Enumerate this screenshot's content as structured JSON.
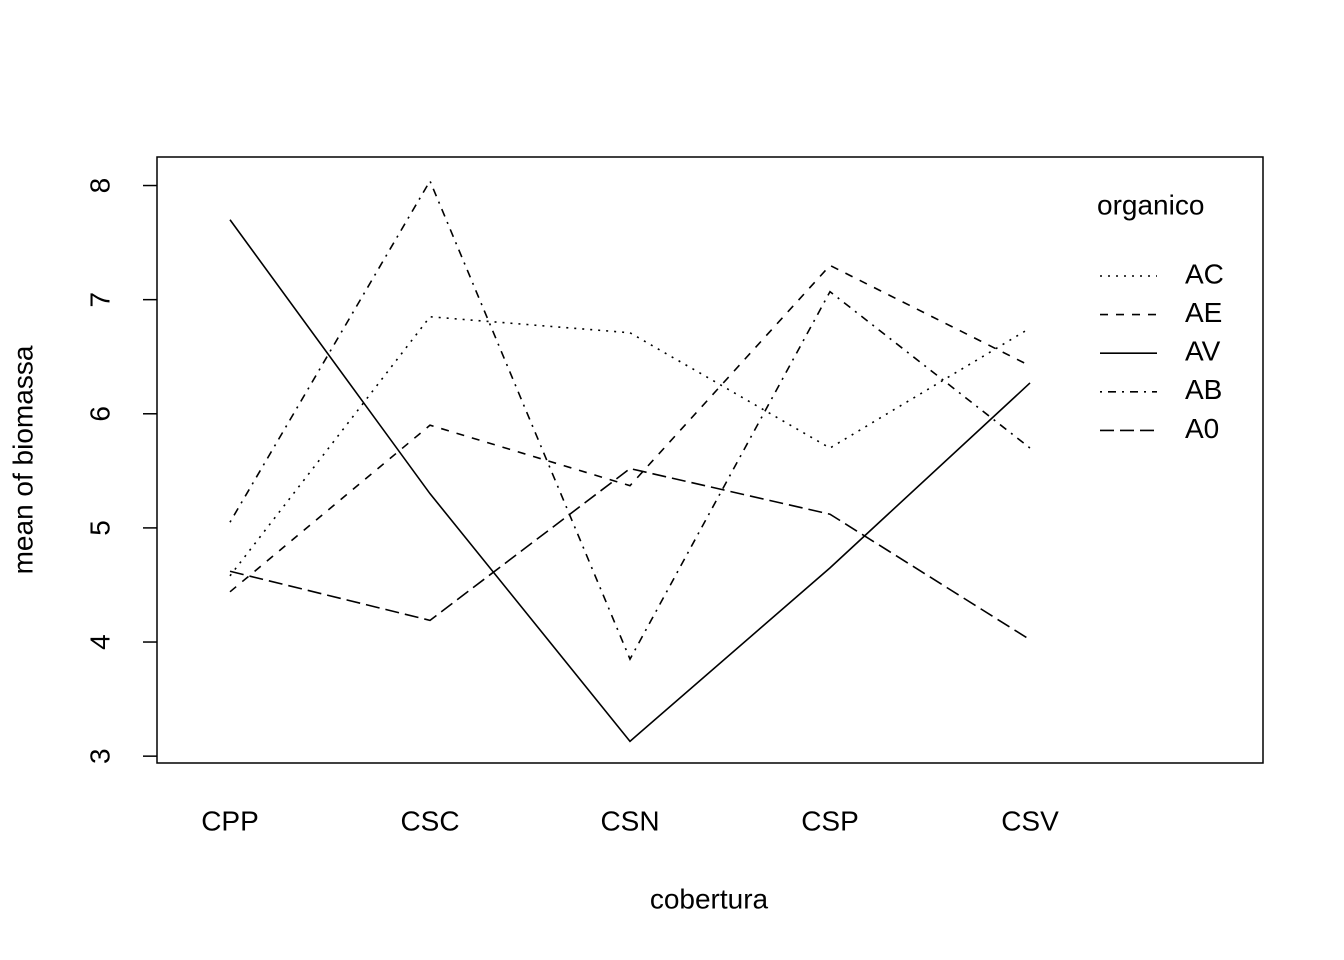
{
  "chart_data": {
    "type": "line",
    "xlabel": "cobertura",
    "ylabel": "mean of  biomassa",
    "categories": [
      "CPP",
      "CSC",
      "CSN",
      "CSP",
      "CSV"
    ],
    "series": [
      {
        "name": "AC",
        "color": "#000000",
        "linestyle": "dotted",
        "values": [
          4.58,
          6.85,
          6.71,
          5.7,
          6.75
        ]
      },
      {
        "name": "AE",
        "color": "#000000",
        "linestyle": "dashed",
        "values": [
          4.44,
          5.9,
          5.37,
          7.3,
          6.42
        ]
      },
      {
        "name": "AV",
        "color": "#000000",
        "linestyle": "solid",
        "values": [
          7.7,
          5.3,
          3.13,
          4.65,
          6.27
        ]
      },
      {
        "name": "AB",
        "color": "#000000",
        "linestyle": "dotdash",
        "values": [
          5.05,
          8.04,
          3.85,
          7.07,
          5.7
        ]
      },
      {
        "name": "A0",
        "color": "#000000",
        "linestyle": "longdash",
        "values": [
          4.62,
          4.19,
          5.52,
          5.12,
          4.02
        ]
      }
    ],
    "legend_title": "organico",
    "legend_position": "top-right",
    "ylim": [
      2.94,
      8.25
    ],
    "yticks": [
      3,
      4,
      5,
      6,
      7,
      8
    ],
    "grid": false
  }
}
